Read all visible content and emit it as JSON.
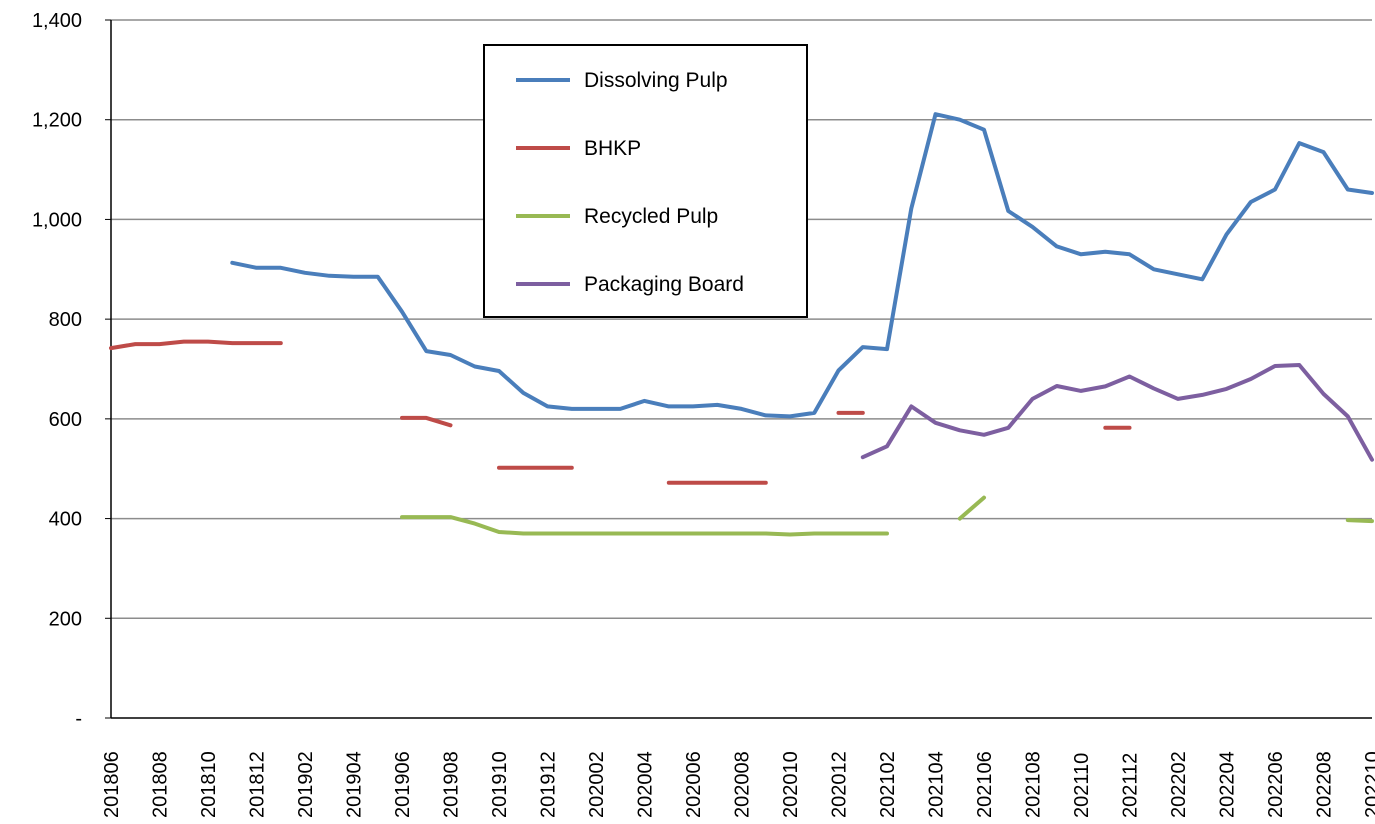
{
  "chart_data": {
    "type": "line",
    "ylim": [
      0,
      1400
    ],
    "y_ticks": [
      {
        "value": 0,
        "label": "-"
      },
      {
        "value": 200,
        "label": "200"
      },
      {
        "value": 400,
        "label": "400"
      },
      {
        "value": 600,
        "label": "600"
      },
      {
        "value": 800,
        "label": "800"
      },
      {
        "value": 1000,
        "label": "1,000"
      },
      {
        "value": 1200,
        "label": "1,200"
      },
      {
        "value": 1400,
        "label": "1,400"
      }
    ],
    "grid": true,
    "legend_position": "top-center",
    "x": [
      "201806",
      "201807",
      "201808",
      "201809",
      "201810",
      "201811",
      "201812",
      "201901",
      "201902",
      "201903",
      "201904",
      "201905",
      "201906",
      "201907",
      "201908",
      "201909",
      "201910",
      "201911",
      "201912",
      "202001",
      "202002",
      "202003",
      "202004",
      "202005",
      "202006",
      "202007",
      "202008",
      "202009",
      "202010",
      "202011",
      "202012",
      "202101",
      "202102",
      "202103",
      "202104",
      "202105",
      "202106",
      "202107",
      "202108",
      "202109",
      "202110",
      "202111",
      "202112",
      "202201",
      "202202",
      "202203",
      "202204",
      "202205",
      "202206",
      "202207",
      "202208",
      "202209",
      "202210"
    ],
    "x_tick_labels": [
      "201806",
      "201808",
      "201810",
      "201812",
      "201902",
      "201904",
      "201906",
      "201908",
      "201910",
      "201912",
      "202002",
      "202004",
      "202006",
      "202008",
      "202010",
      "202012",
      "202102",
      "202104",
      "202106",
      "202108",
      "202110",
      "202112",
      "202202",
      "202204",
      "202206",
      "202208",
      "202210"
    ],
    "series": [
      {
        "name": "Dissolving Pulp",
        "color": "#4a7ebb",
        "values": [
          null,
          null,
          null,
          null,
          null,
          913,
          903,
          903,
          893,
          887,
          885,
          885,
          815,
          736,
          728,
          705,
          696,
          652,
          625,
          620,
          620,
          620,
          636,
          625,
          625,
          628,
          620,
          607,
          605,
          612,
          697,
          744,
          740,
          1022,
          1211,
          1200,
          1180,
          1017,
          985,
          946,
          930,
          935,
          930,
          900,
          890,
          880,
          970,
          1035,
          1060,
          1153,
          1135,
          1060,
          1053
        ]
      },
      {
        "name": "BHKP",
        "color": "#be4b48",
        "values": [
          742,
          750,
          750,
          755,
          755,
          752,
          752,
          752,
          null,
          null,
          null,
          null,
          602,
          602,
          587,
          null,
          502,
          502,
          502,
          502,
          null,
          null,
          null,
          472,
          472,
          472,
          472,
          472,
          null,
          null,
          612,
          612,
          null,
          null,
          null,
          null,
          null,
          null,
          null,
          null,
          null,
          582,
          582,
          null,
          null,
          null,
          null,
          null,
          null,
          null,
          null,
          null,
          null
        ]
      },
      {
        "name": "Recycled Pulp",
        "color": "#98b954",
        "values": [
          null,
          null,
          null,
          null,
          null,
          null,
          null,
          null,
          null,
          null,
          null,
          null,
          403,
          403,
          403,
          390,
          373,
          370,
          370,
          370,
          370,
          370,
          370,
          370,
          370,
          370,
          370,
          370,
          368,
          370,
          370,
          370,
          370,
          null,
          null,
          400,
          442,
          null,
          null,
          null,
          null,
          null,
          null,
          null,
          null,
          null,
          null,
          null,
          null,
          null,
          null,
          397,
          395
        ]
      },
      {
        "name": "Packaging Board",
        "color": "#7d5fa0",
        "values": [
          null,
          null,
          null,
          null,
          null,
          null,
          null,
          null,
          null,
          null,
          null,
          null,
          null,
          null,
          null,
          null,
          null,
          null,
          null,
          null,
          null,
          null,
          null,
          null,
          null,
          null,
          null,
          null,
          null,
          null,
          null,
          523,
          545,
          625,
          592,
          577,
          568,
          582,
          640,
          666,
          656,
          665,
          685,
          661,
          640,
          648,
          660,
          680,
          706,
          708,
          650,
          605,
          518
        ]
      }
    ]
  }
}
